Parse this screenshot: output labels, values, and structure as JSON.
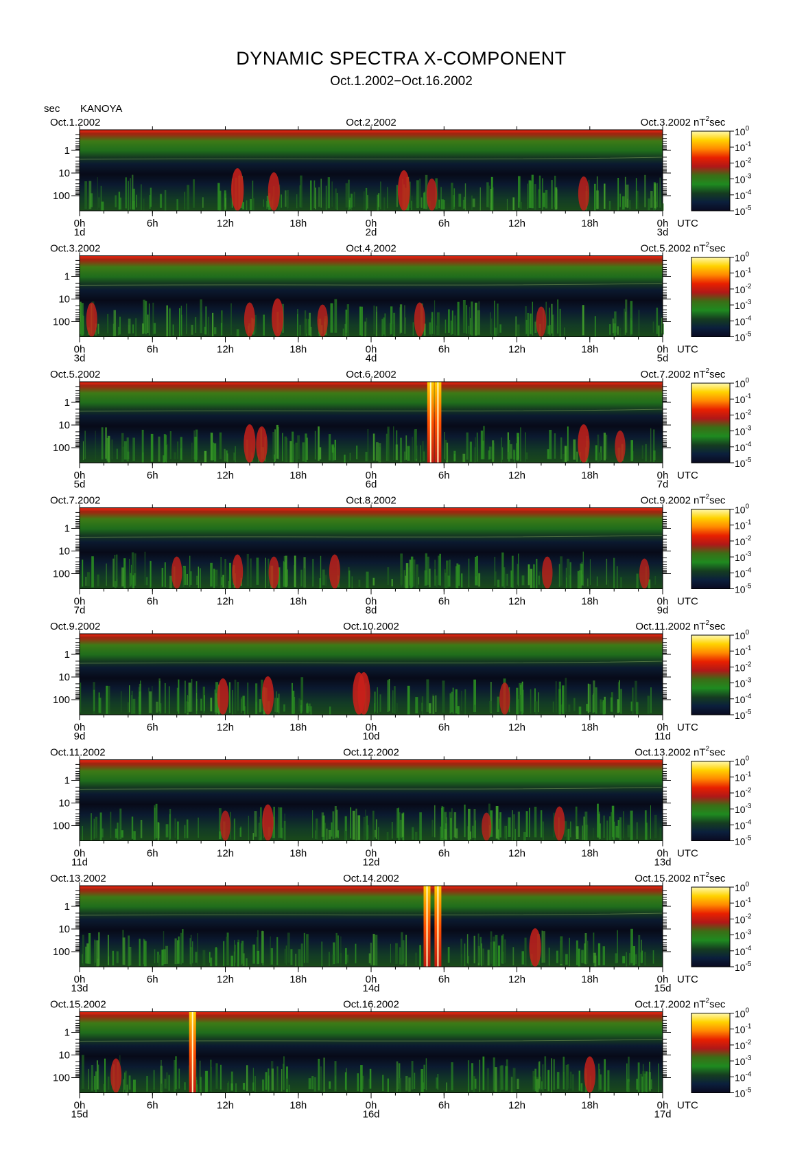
{
  "title": "DYNAMIC SPECTRA X-COMPONENT",
  "subtitle": "Oct.1.2002−Oct.16.2002",
  "y_unit": "sec",
  "station": "KANOYA",
  "colorbar_unit": "nT",
  "colorbar_unit_sup": "2",
  "colorbar_unit_suffix": "sec",
  "utc_label": "UTC",
  "colorbar_colors": [
    "#fff9b0",
    "#ffd300",
    "#ff8a00",
    "#e82000",
    "#b01818",
    "#3b6e16",
    "#1f8a20",
    "#153d20",
    "#0b1f3c",
    "#0a0a20"
  ],
  "chart_data": {
    "type": "heatmap",
    "description_axes": "x: time (UTC hours over 2 days per panel), y: period in seconds (log scale, inverted), color: power nT^2 sec (log)",
    "y_ticks": [
      "1",
      "10",
      "100"
    ],
    "x_ticks": [
      "0h",
      "6h",
      "12h",
      "18h",
      "0h",
      "6h",
      "12h",
      "18h",
      "0h"
    ],
    "colorbar_ticks": [
      {
        "base": "10",
        "exp": "0"
      },
      {
        "base": "10",
        "exp": "-1"
      },
      {
        "base": "10",
        "exp": "-2"
      },
      {
        "base": "10",
        "exp": "-3"
      },
      {
        "base": "10",
        "exp": "-4"
      },
      {
        "base": "10",
        "exp": "-5"
      }
    ],
    "panels": [
      {
        "date_left": "Oct.1.2002",
        "date_mid": "Oct.2.2002",
        "date_right": "Oct.3.2002",
        "day_left": "1d",
        "day_mid": "2d",
        "day_right": "3d",
        "events": [
          [
            13,
            0.7,
            0.3
          ],
          [
            16,
            0.6,
            0.22
          ],
          [
            26.7,
            0.65,
            0.25
          ],
          [
            29,
            0.45,
            0.14
          ],
          [
            41.5,
            0.5,
            0.18
          ]
        ]
      },
      {
        "date_left": "Oct.3.2002",
        "date_mid": "Oct.4.2002",
        "date_right": "Oct.5.2002",
        "day_left": "3d",
        "day_mid": "4d",
        "day_right": "5d",
        "events": [
          [
            1,
            0.5,
            0.15
          ],
          [
            14,
            0.5,
            0.14
          ],
          [
            16.3,
            0.6,
            0.2
          ],
          [
            20,
            0.45,
            0.14
          ],
          [
            28,
            0.5,
            0.2
          ],
          [
            38,
            0.4,
            0.15
          ]
        ]
      },
      {
        "date_left": "Oct.5.2002",
        "date_mid": "Oct.6.2002",
        "date_right": "Oct.7.2002",
        "day_left": "5d",
        "day_mid": "6d",
        "day_right": "7d",
        "events": [
          [
            14,
            0.6,
            0.25
          ],
          [
            15,
            0.55,
            0.2
          ],
          [
            28.9,
            1.0,
            0.0
          ],
          [
            29.5,
            1.0,
            0.0
          ],
          [
            41.5,
            0.6,
            0.25
          ],
          [
            44.5,
            0.45,
            0.15
          ]
        ]
      },
      {
        "date_left": "Oct.7.2002",
        "date_mid": "Oct.8.2002",
        "date_right": "Oct.9.2002",
        "day_left": "7d",
        "day_mid": "8d",
        "day_right": "9d",
        "events": [
          [
            8,
            0.45,
            0.15
          ],
          [
            13,
            0.5,
            0.15
          ],
          [
            16,
            0.45,
            0.15
          ],
          [
            21,
            0.5,
            0.2
          ],
          [
            38.5,
            0.45,
            0.15
          ],
          [
            46.5,
            0.4,
            0.15
          ]
        ]
      },
      {
        "date_left": "Oct.9.2002",
        "date_mid": "Oct.10.2002",
        "date_right": "Oct.11.2002",
        "day_left": "9d",
        "day_mid": "10d",
        "day_right": "11d",
        "events": [
          [
            11.8,
            0.55,
            0.2
          ],
          [
            15.5,
            0.6,
            0.2
          ],
          [
            23,
            0.7,
            0.25
          ],
          [
            23.4,
            0.7,
            0.25
          ],
          [
            35,
            0.45,
            0.15
          ]
        ]
      },
      {
        "date_left": "Oct.11.2002",
        "date_mid": "Oct.12.2002",
        "date_right": "Oct.13.2002",
        "day_left": "11d",
        "day_mid": "12d",
        "day_right": "13d",
        "events": [
          [
            15.5,
            0.55,
            0.18
          ],
          [
            12,
            0.4,
            0.12
          ],
          [
            39.5,
            0.5,
            0.2
          ],
          [
            33.5,
            0.35,
            0.12
          ]
        ]
      },
      {
        "date_left": "Oct.13.2002",
        "date_mid": "Oct.14.2002",
        "date_right": "Oct.15.2002",
        "day_left": "13d",
        "day_mid": "14d",
        "day_right": "15d",
        "events": [
          [
            28.6,
            1.0,
            0.0
          ],
          [
            29.5,
            1.0,
            0.0
          ],
          [
            37.5,
            0.6,
            0.25
          ]
        ]
      },
      {
        "date_left": "Oct.15.2002",
        "date_mid": "Oct.16.2002",
        "date_right": "Oct.17.2002",
        "day_left": "15d",
        "day_mid": "16d",
        "day_right": "17d",
        "events": [
          [
            9.3,
            1.0,
            0.0
          ],
          [
            3,
            0.5,
            0.15
          ],
          [
            42,
            0.55,
            0.2
          ]
        ]
      }
    ]
  }
}
